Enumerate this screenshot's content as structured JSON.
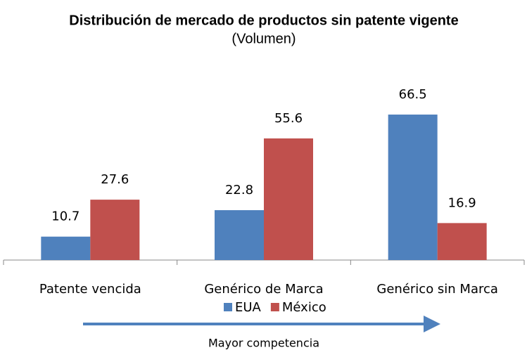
{
  "chart_data": {
    "type": "bar",
    "title": "Distribución de mercado de productos sin patente vigente",
    "subtitle": "(Volumen)",
    "categories": [
      "Patente vencida",
      "Genérico de Marca",
      "Genérico sin Marca"
    ],
    "series": [
      {
        "name": "EUA",
        "color": "#4f81bd",
        "values": [
          10.7,
          22.8,
          66.5
        ]
      },
      {
        "name": "México",
        "color": "#c0504d",
        "values": [
          27.6,
          55.6,
          16.9
        ]
      }
    ],
    "ylim": [
      0,
      80
    ],
    "legend": "bottom",
    "annotation": "Mayor competencia"
  }
}
